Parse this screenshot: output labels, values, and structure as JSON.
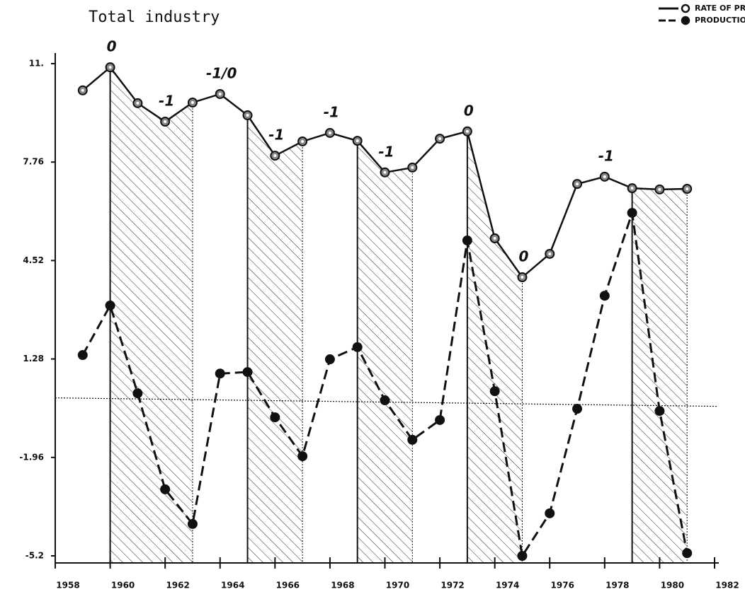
{
  "chart_data": {
    "type": "line",
    "title": "Total industry",
    "x": [
      1959,
      1960,
      1961,
      1962,
      1963,
      1964,
      1965,
      1966,
      1967,
      1968,
      1969,
      1970,
      1971,
      1972,
      1973,
      1974,
      1975,
      1976,
      1977,
      1978,
      1979,
      1980,
      1981
    ],
    "series": [
      {
        "name": "RATE OF PROFIT",
        "color": "#111111",
        "style": "solid",
        "marker": "open",
        "values": [
          10.12,
          10.88,
          9.7,
          9.09,
          9.72,
          10.0,
          9.3,
          7.97,
          8.44,
          8.72,
          8.46,
          7.42,
          7.58,
          8.53,
          8.77,
          5.25,
          3.97,
          4.74,
          7.04,
          7.28,
          6.9,
          6.86,
          6.88
        ]
      },
      {
        "name": "PRODUCTION",
        "color": "#111111",
        "style": "dashed",
        "marker": "filled",
        "values": [
          1.41,
          3.04,
          0.15,
          -3.01,
          -4.15,
          0.8,
          0.85,
          -0.64,
          -1.92,
          1.27,
          1.67,
          -0.08,
          -1.38,
          -0.73,
          5.18,
          0.22,
          -5.2,
          -3.8,
          -0.36,
          3.36,
          6.09,
          -0.43,
          -5.11
        ]
      }
    ],
    "xlim": [
      1958,
      1982
    ],
    "xticks": [
      1958,
      1960,
      1962,
      1964,
      1966,
      1968,
      1970,
      1972,
      1974,
      1976,
      1978,
      1980,
      1982
    ],
    "ylim": [
      -5.2,
      11
    ],
    "yticks": [
      -5.2,
      -1.96,
      1.28,
      4.52,
      7.76,
      {
        "value": 11,
        "label": "11."
      }
    ],
    "hline": 0,
    "shaded_spans": [
      [
        1960,
        1963
      ],
      [
        1965,
        1967
      ],
      [
        1969,
        1971
      ],
      [
        1973,
        1975
      ],
      [
        1979,
        1981
      ]
    ],
    "annotations": [
      {
        "text": "0",
        "x": 1960
      },
      {
        "text": "-1",
        "x": 1962
      },
      {
        "text": "-1/0",
        "x": 1964
      },
      {
        "text": "-1",
        "x": 1966
      },
      {
        "text": "-1",
        "x": 1968
      },
      {
        "text": "-1",
        "x": 1970
      },
      {
        "text": "0",
        "x": 1973
      },
      {
        "text": "0",
        "x": 1975
      },
      {
        "text": "-1",
        "x": 1978
      }
    ],
    "legend": "top-right"
  }
}
